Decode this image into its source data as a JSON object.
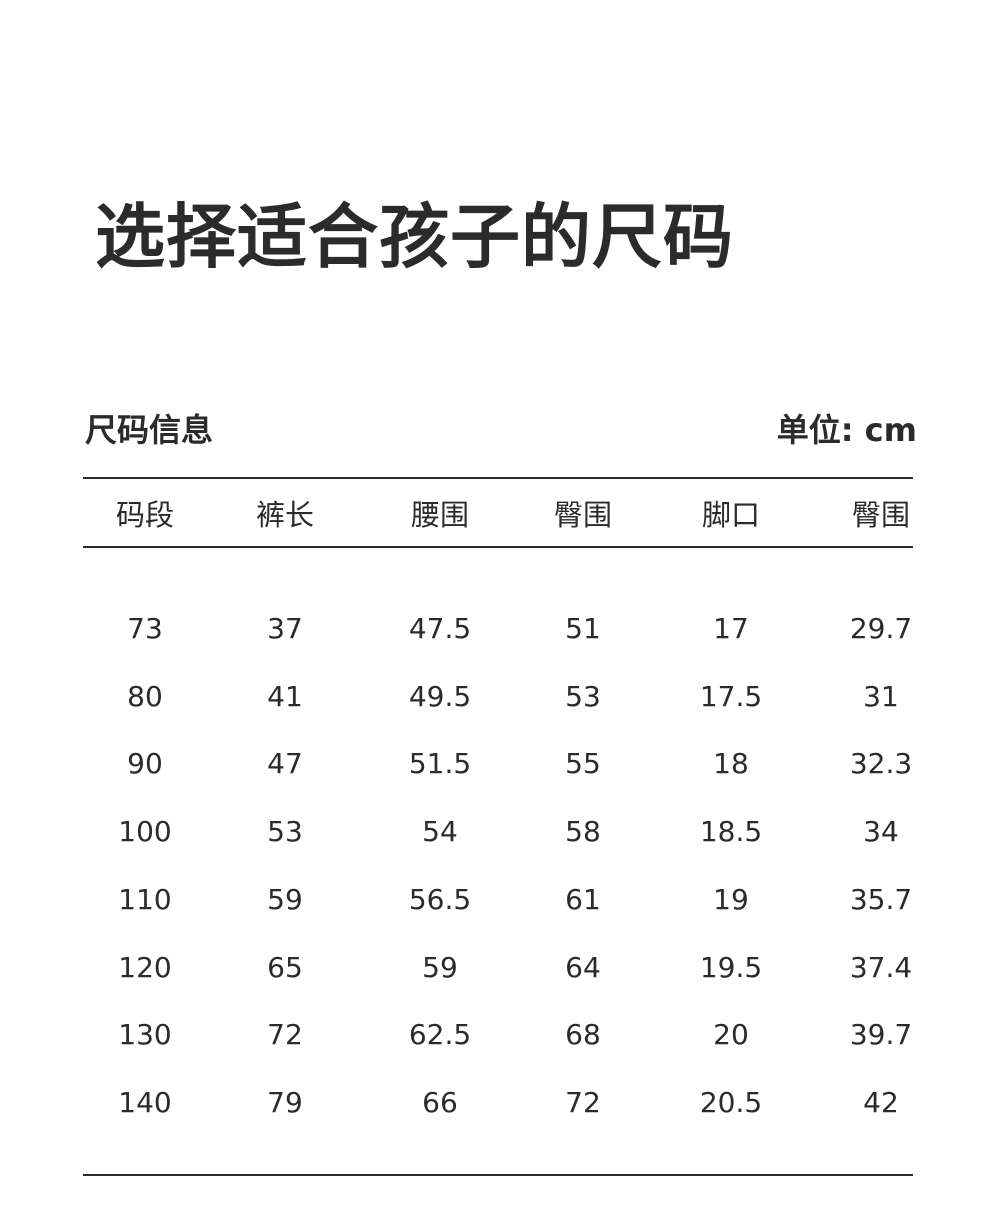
{
  "title": "选择适合孩子的尺码",
  "section_label": "尺码信息",
  "unit_label": "单位: cm",
  "table": {
    "headers": [
      "码段",
      "裤长",
      "腰围",
      "臀围",
      "脚口",
      "臀围"
    ],
    "rows": [
      [
        "73",
        "37",
        "47.5",
        "51",
        "17",
        "29.7"
      ],
      [
        "80",
        "41",
        "49.5",
        "53",
        "17.5",
        "31"
      ],
      [
        "90",
        "47",
        "51.5",
        "55",
        "18",
        "32.3"
      ],
      [
        "100",
        "53",
        "54",
        "58",
        "18.5",
        "34"
      ],
      [
        "110",
        "59",
        "56.5",
        "61",
        "19",
        "35.7"
      ],
      [
        "120",
        "65",
        "59",
        "64",
        "19.5",
        "37.4"
      ],
      [
        "130",
        "72",
        "62.5",
        "68",
        "20",
        "39.7"
      ],
      [
        "140",
        "79",
        "66",
        "72",
        "20.5",
        "42"
      ]
    ]
  }
}
